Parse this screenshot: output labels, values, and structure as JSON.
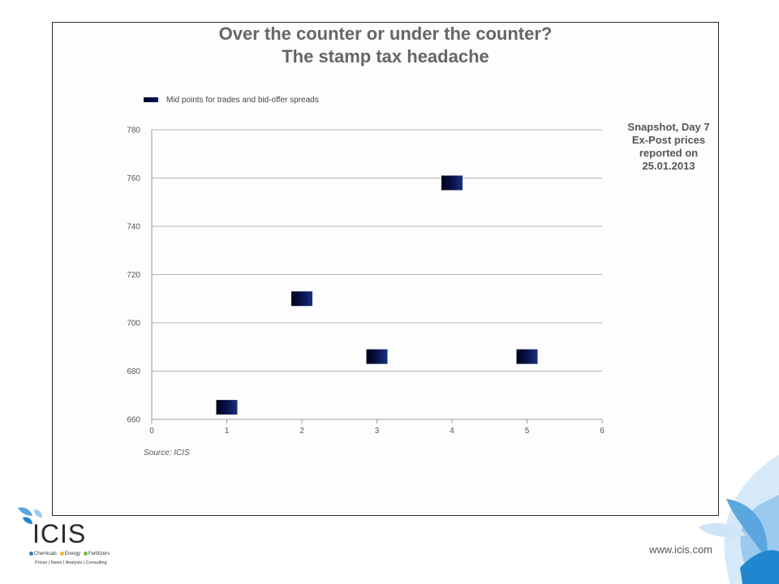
{
  "slide": {
    "title_lines": [
      "Over the counter or under the counter?",
      "The stamp tax headache"
    ],
    "snapshot_lines": [
      "Snapshot, Day 7",
      "Ex-Post prices",
      "reported on",
      "25.01.2013"
    ],
    "source": "Source: ICIS",
    "website": "www.icis.com"
  },
  "logo": {
    "name": "ICIS",
    "sectors": [
      {
        "label": "Chemicals",
        "color": "#1f7fc4"
      },
      {
        "label": "Energy",
        "color": "#f2b632"
      },
      {
        "label": "Fertilizers",
        "color": "#7bbf4a"
      }
    ],
    "tagline": "Prices | News | Analysis | Consulting"
  },
  "chart_data": {
    "type": "scatter",
    "title": "",
    "xlabel": "",
    "ylabel": "",
    "xlim": [
      0,
      6
    ],
    "ylim": [
      660,
      780
    ],
    "xticks": [
      0,
      1,
      2,
      3,
      4,
      5,
      6
    ],
    "yticks": [
      660,
      680,
      700,
      720,
      740,
      760,
      780
    ],
    "grid": "horizontal",
    "legend": "top-left",
    "marker_color": "#0a1450",
    "series": [
      {
        "name": "Mid points for trades and bid-offer spreads",
        "points": [
          {
            "x": 1,
            "y": 665
          },
          {
            "x": 2,
            "y": 710
          },
          {
            "x": 3,
            "y": 686
          },
          {
            "x": 4,
            "y": 758
          },
          {
            "x": 5,
            "y": 686
          }
        ]
      }
    ]
  }
}
